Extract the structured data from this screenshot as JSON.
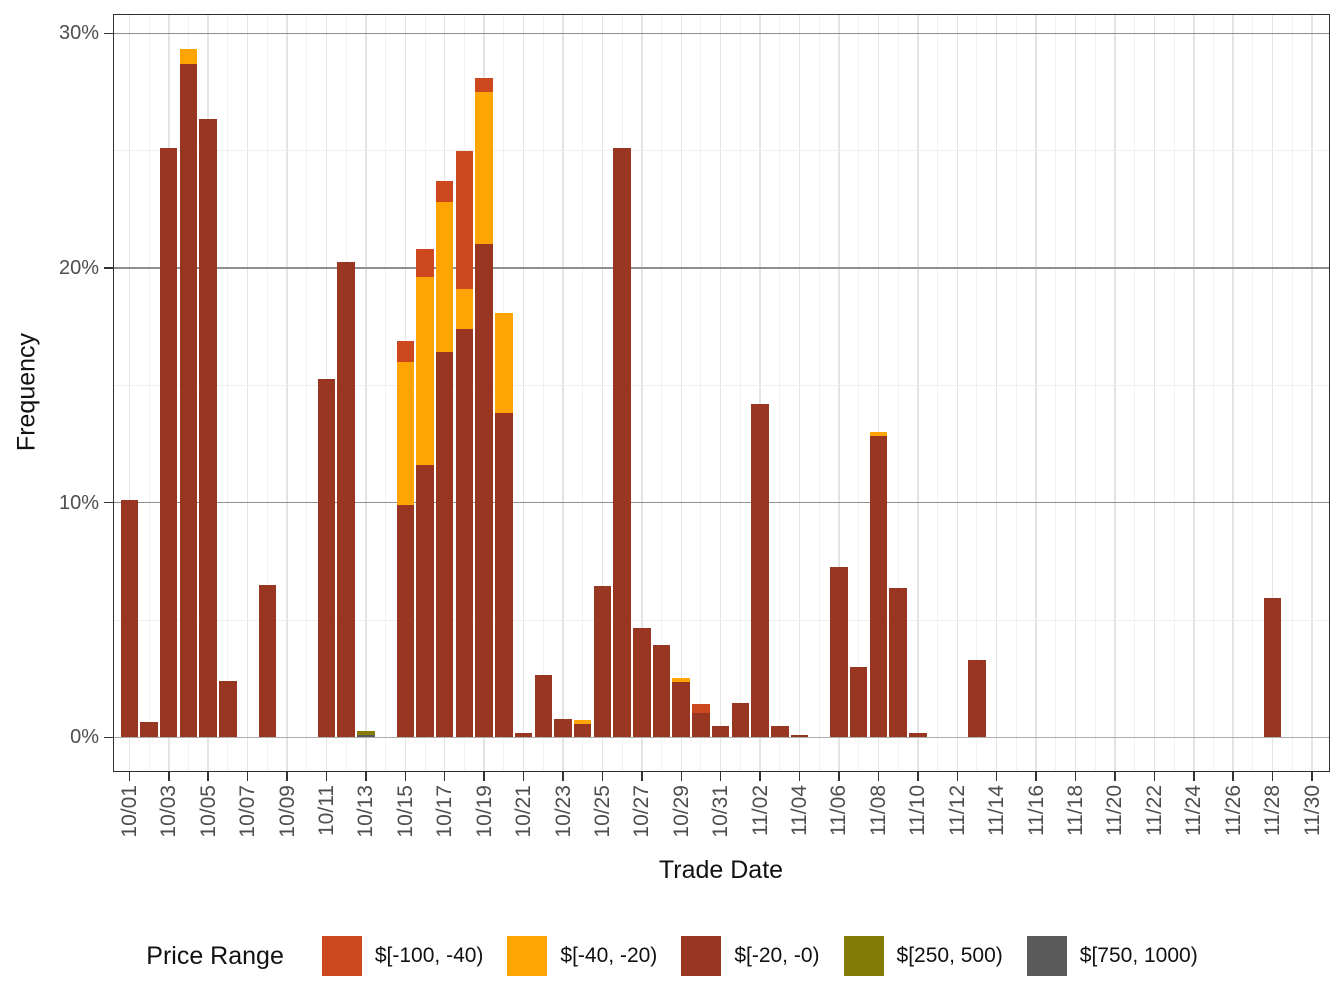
{
  "chart_data": {
    "type": "bar",
    "stacked": true,
    "title": "",
    "xlabel": "Trade Date",
    "ylabel": "Frequency",
    "legend_position": "bottom",
    "legend_title": "Price Range",
    "grid": true,
    "ylim": [
      0,
      31.6
    ],
    "y_ticks": [
      {
        "value": 0,
        "label": "0%"
      },
      {
        "value": 10,
        "label": "10%"
      },
      {
        "value": 20,
        "label": "20%"
      },
      {
        "value": 30,
        "label": "30%"
      }
    ],
    "y_minor_ticks": [
      5,
      15,
      25
    ],
    "x_range": [
      "10/01",
      "11/30"
    ],
    "x_tick_labels": [
      "10/01",
      "10/03",
      "10/05",
      "10/07",
      "10/09",
      "10/11",
      "10/13",
      "10/15",
      "10/17",
      "10/19",
      "10/21",
      "10/23",
      "10/25",
      "10/27",
      "10/29",
      "10/31",
      "11/02",
      "11/04",
      "11/06",
      "11/08",
      "11/10",
      "11/12",
      "11/14",
      "11/16",
      "11/18",
      "11/20",
      "11/22",
      "11/24",
      "11/26",
      "11/28",
      "11/30"
    ],
    "legend": [
      {
        "label": "$[-100, -40)",
        "color": "#CD481F"
      },
      {
        "label": "$[-40, -20)",
        "color": "#FFA405"
      },
      {
        "label": "$[-20, -0)",
        "color": "#993621"
      },
      {
        "label": "$[250, 500)",
        "color": "#857C08"
      },
      {
        "label": "$[750, 1000)",
        "color": "#5A5A5A"
      }
    ],
    "series_order_bottom_to_top": [
      "$[750, 1000)",
      "$[250, 500)",
      "$[-20, -0)",
      "$[-40, -20)",
      "$[-100, -40)"
    ],
    "bars": [
      {
        "date": "10/01",
        "segments": [
          [
            "$[-20, -0)",
            10.1
          ]
        ]
      },
      {
        "date": "10/02",
        "segments": [
          [
            "$[-20, -0)",
            0.65
          ]
        ]
      },
      {
        "date": "10/03",
        "segments": [
          [
            "$[-20, -0)",
            25.1
          ]
        ]
      },
      {
        "date": "10/04",
        "segments": [
          [
            "$[-20, -0)",
            28.7
          ],
          [
            "$[-40, -20)",
            0.65
          ]
        ]
      },
      {
        "date": "10/05",
        "segments": [
          [
            "$[-20, -0)",
            26.35
          ]
        ]
      },
      {
        "date": "10/06",
        "segments": [
          [
            "$[-20, -0)",
            2.4
          ]
        ]
      },
      {
        "date": "10/08",
        "segments": [
          [
            "$[-20, -0)",
            6.5
          ]
        ]
      },
      {
        "date": "10/11",
        "segments": [
          [
            "$[-20, -0)",
            15.25
          ]
        ]
      },
      {
        "date": "10/12",
        "segments": [
          [
            "$[-20, -0)",
            20.27
          ]
        ]
      },
      {
        "date": "10/13",
        "segments": [
          [
            "$[750, 1000)",
            0.1
          ],
          [
            "$[250, 500)",
            0.17
          ]
        ]
      },
      {
        "date": "10/15",
        "segments": [
          [
            "$[-20, -0)",
            9.9
          ],
          [
            "$[-40, -20)",
            6.1
          ],
          [
            "$[-100, -40)",
            0.9
          ]
        ]
      },
      {
        "date": "10/16",
        "segments": [
          [
            "$[-20, -0)",
            11.6
          ],
          [
            "$[-40, -20)",
            8.0
          ],
          [
            "$[-100, -40)",
            1.2
          ]
        ]
      },
      {
        "date": "10/17",
        "segments": [
          [
            "$[-20, -0)",
            16.4
          ],
          [
            "$[-40, -20)",
            6.4
          ],
          [
            "$[-100, -40)",
            0.9
          ]
        ]
      },
      {
        "date": "10/18",
        "segments": [
          [
            "$[-20, -0)",
            17.4
          ],
          [
            "$[-40, -20)",
            1.7
          ],
          [
            "$[-100, -40)",
            5.9
          ]
        ]
      },
      {
        "date": "10/19",
        "segments": [
          [
            "$[-20, -0)",
            21.0
          ],
          [
            "$[-40, -20)",
            6.5
          ],
          [
            "$[-100, -40)",
            0.6
          ]
        ]
      },
      {
        "date": "10/20",
        "segments": [
          [
            "$[-20, -0)",
            13.8
          ],
          [
            "$[-40, -20)",
            4.3
          ]
        ]
      },
      {
        "date": "10/21",
        "segments": [
          [
            "$[-20, -0)",
            0.2
          ]
        ]
      },
      {
        "date": "10/22",
        "segments": [
          [
            "$[-20, -0)",
            2.65
          ]
        ]
      },
      {
        "date": "10/23",
        "segments": [
          [
            "$[-20, -0)",
            0.8
          ]
        ]
      },
      {
        "date": "10/24",
        "segments": [
          [
            "$[-20, -0)",
            0.55
          ],
          [
            "$[-40, -20)",
            0.2
          ]
        ]
      },
      {
        "date": "10/25",
        "segments": [
          [
            "$[-20, -0)",
            6.45
          ]
        ]
      },
      {
        "date": "10/26",
        "segments": [
          [
            "$[-20, -0)",
            25.1
          ]
        ]
      },
      {
        "date": "10/27",
        "segments": [
          [
            "$[-20, -0)",
            4.65
          ]
        ]
      },
      {
        "date": "10/28",
        "segments": [
          [
            "$[-20, -0)",
            3.95
          ]
        ]
      },
      {
        "date": "10/29",
        "segments": [
          [
            "$[-20, -0)",
            2.37
          ],
          [
            "$[-40, -20)",
            0.15
          ]
        ]
      },
      {
        "date": "10/30",
        "segments": [
          [
            "$[-20, -0)",
            1.05
          ],
          [
            "$[-100, -40)",
            0.38
          ]
        ]
      },
      {
        "date": "10/31",
        "segments": [
          [
            "$[-20, -0)",
            0.5
          ]
        ]
      },
      {
        "date": "11/01",
        "segments": [
          [
            "$[-20, -0)",
            1.47
          ]
        ]
      },
      {
        "date": "11/02",
        "segments": [
          [
            "$[-20, -0)",
            14.2
          ]
        ]
      },
      {
        "date": "11/03",
        "segments": [
          [
            "$[-20, -0)",
            0.5
          ]
        ]
      },
      {
        "date": "11/04",
        "segments": [
          [
            "$[-20, -0)",
            0.1
          ]
        ]
      },
      {
        "date": "11/06",
        "segments": [
          [
            "$[-20, -0)",
            7.27
          ]
        ]
      },
      {
        "date": "11/07",
        "segments": [
          [
            "$[-20, -0)",
            3.0
          ]
        ]
      },
      {
        "date": "11/08",
        "segments": [
          [
            "$[-20, -0)",
            12.85
          ],
          [
            "$[-40, -20)",
            0.15
          ]
        ]
      },
      {
        "date": "11/09",
        "segments": [
          [
            "$[-20, -0)",
            6.35
          ]
        ]
      },
      {
        "date": "11/10",
        "segments": [
          [
            "$[-20, -0)",
            0.17
          ]
        ]
      },
      {
        "date": "11/13",
        "segments": [
          [
            "$[-20, -0)",
            3.3
          ]
        ]
      },
      {
        "date": "11/28",
        "segments": [
          [
            "$[-20, -0)",
            5.95
          ]
        ]
      }
    ]
  }
}
